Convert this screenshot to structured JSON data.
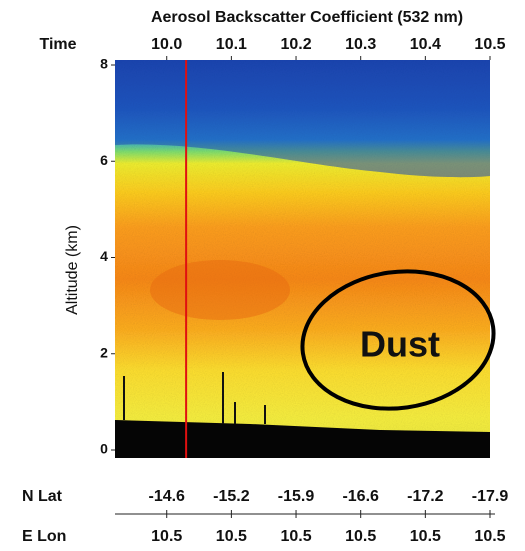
{
  "chart_data": {
    "type": "curtain",
    "title": "Aerosol Backscatter Coefficient (532 nm)",
    "x_label": "Time",
    "xlim": [
      9.92,
      10.5
    ],
    "xticks": [
      {
        "value": 10.0,
        "label": "10.0"
      },
      10.1,
      10.2,
      10.3,
      10.4,
      10.5
    ],
    "y_label": "Altitude (km)",
    "ylim": [
      0,
      8
    ],
    "yticks": [
      0,
      2,
      4,
      6,
      8
    ],
    "reference_line_x": 10.03,
    "reference_line_color": "#e01010",
    "annotation": "Dust",
    "lat_label": "N Lat",
    "lat": [
      -14.6,
      -15.2,
      -15.9,
      -16.6,
      -17.2,
      -17.9
    ],
    "lon_label": "E Lon",
    "lon": [
      10.5,
      10.5,
      10.5,
      10.5,
      10.5,
      10.5
    ]
  }
}
